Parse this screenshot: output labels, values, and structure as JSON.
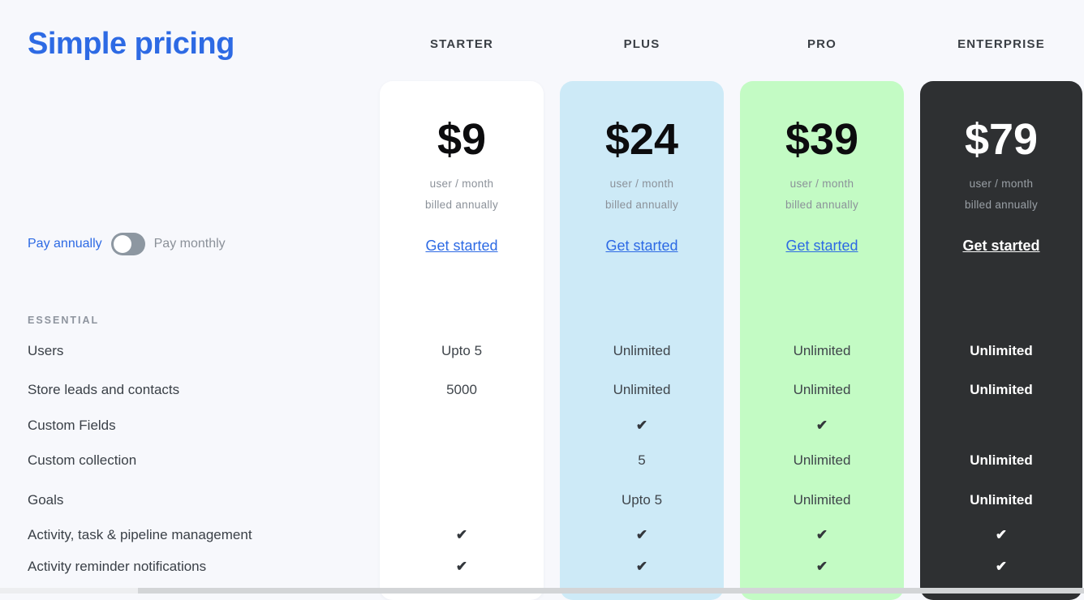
{
  "page": {
    "title": "Simple pricing"
  },
  "billing": {
    "annual_label": "Pay annually",
    "monthly_label": "Pay monthly",
    "toggle_state": "annual"
  },
  "features": {
    "section_label": "ESSENTIAL",
    "rows": [
      "Users",
      "Store leads and contacts",
      "Custom Fields",
      "Custom collection",
      "Goals",
      "Activity, task & pipeline management",
      "Activity reminder notifications"
    ]
  },
  "plans": [
    {
      "name": "STARTER",
      "price": "$9",
      "per_line1": "user / month",
      "per_line2": "billed annually",
      "cta": "Get started",
      "values": [
        "Upto 5",
        "5000",
        "",
        "",
        "",
        "✔",
        "✔"
      ]
    },
    {
      "name": "PLUS",
      "price": "$24",
      "per_line1": "user / month",
      "per_line2": "billed annually",
      "cta": "Get started",
      "values": [
        "Unlimited",
        "Unlimited",
        "✔",
        "5",
        "Upto 5",
        "✔",
        "✔"
      ]
    },
    {
      "name": "PRO",
      "price": "$39",
      "per_line1": "user / month",
      "per_line2": "billed annually",
      "cta": "Get started",
      "values": [
        "Unlimited",
        "Unlimited",
        "✔",
        "Unlimited",
        "Unlimited",
        "✔",
        "✔"
      ]
    },
    {
      "name": "ENTERPRISE",
      "price": "$79",
      "per_line1": "user / month",
      "per_line2": "billed annually",
      "cta": "Get started",
      "values": [
        "Unlimited",
        "Unlimited",
        "",
        "Unlimited",
        "Unlimited",
        "✔",
        "✔"
      ]
    }
  ],
  "colors": {
    "accent_blue": "#2d6ae4",
    "page_bg": "#f7f8fc",
    "starter_bg": "#ffffff",
    "plus_bg": "#cdeaf7",
    "pro_bg": "#c3fbc4",
    "enterprise_bg": "#2e3032",
    "toggle_track": "#8d97a1"
  }
}
